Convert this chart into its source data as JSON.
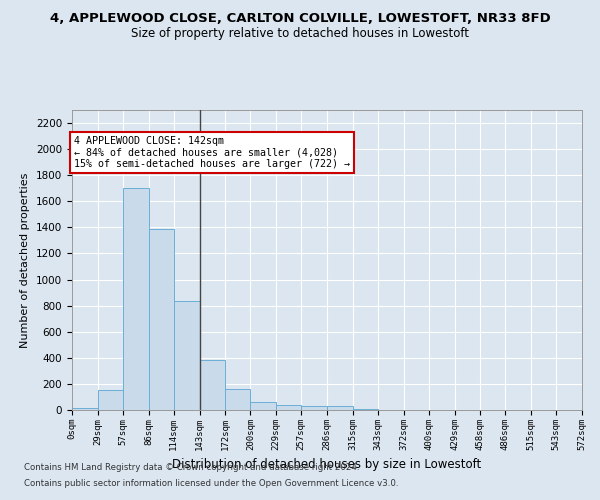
{
  "title": "4, APPLEWOOD CLOSE, CARLTON COLVILLE, LOWESTOFT, NR33 8FD",
  "subtitle": "Size of property relative to detached houses in Lowestoft",
  "xlabel": "Distribution of detached houses by size in Lowestoft",
  "ylabel": "Number of detached properties",
  "footer_line1": "Contains HM Land Registry data © Crown copyright and database right 2024.",
  "footer_line2": "Contains public sector information licensed under the Open Government Licence v3.0.",
  "bin_edges": [
    0,
    29,
    57,
    86,
    114,
    143,
    172,
    200,
    229,
    257,
    286,
    315,
    343,
    372,
    400,
    429,
    458,
    486,
    515,
    543,
    572
  ],
  "bar_heights": [
    15,
    155,
    1700,
    1390,
    835,
    385,
    162,
    65,
    38,
    28,
    28,
    8,
    0,
    0,
    0,
    0,
    0,
    0,
    0,
    0
  ],
  "bar_color": "#c9daea",
  "bar_edge_color": "#6aaed6",
  "vline_color": "#444444",
  "vline_x": 143,
  "annotation_text": "4 APPLEWOOD CLOSE: 142sqm\n← 84% of detached houses are smaller (4,028)\n15% of semi-detached houses are larger (722) →",
  "annotation_box_color": "white",
  "annotation_box_edge_color": "#cc0000",
  "ylim": [
    0,
    2300
  ],
  "yticks": [
    0,
    200,
    400,
    600,
    800,
    1000,
    1200,
    1400,
    1600,
    1800,
    2000,
    2200
  ],
  "bg_color": "#dce6f0",
  "plot_bg_color": "#dce6f0",
  "title_fontsize": 9.5,
  "subtitle_fontsize": 8.5,
  "ylabel_fontsize": 8,
  "xlabel_fontsize": 8.5,
  "tick_labels": [
    "0sqm",
    "29sqm",
    "57sqm",
    "86sqm",
    "114sqm",
    "143sqm",
    "172sqm",
    "200sqm",
    "229sqm",
    "257sqm",
    "286sqm",
    "315sqm",
    "343sqm",
    "372sqm",
    "400sqm",
    "429sqm",
    "458sqm",
    "486sqm",
    "515sqm",
    "543sqm",
    "572sqm"
  ],
  "grid_color": "white",
  "grid_linewidth": 0.8
}
